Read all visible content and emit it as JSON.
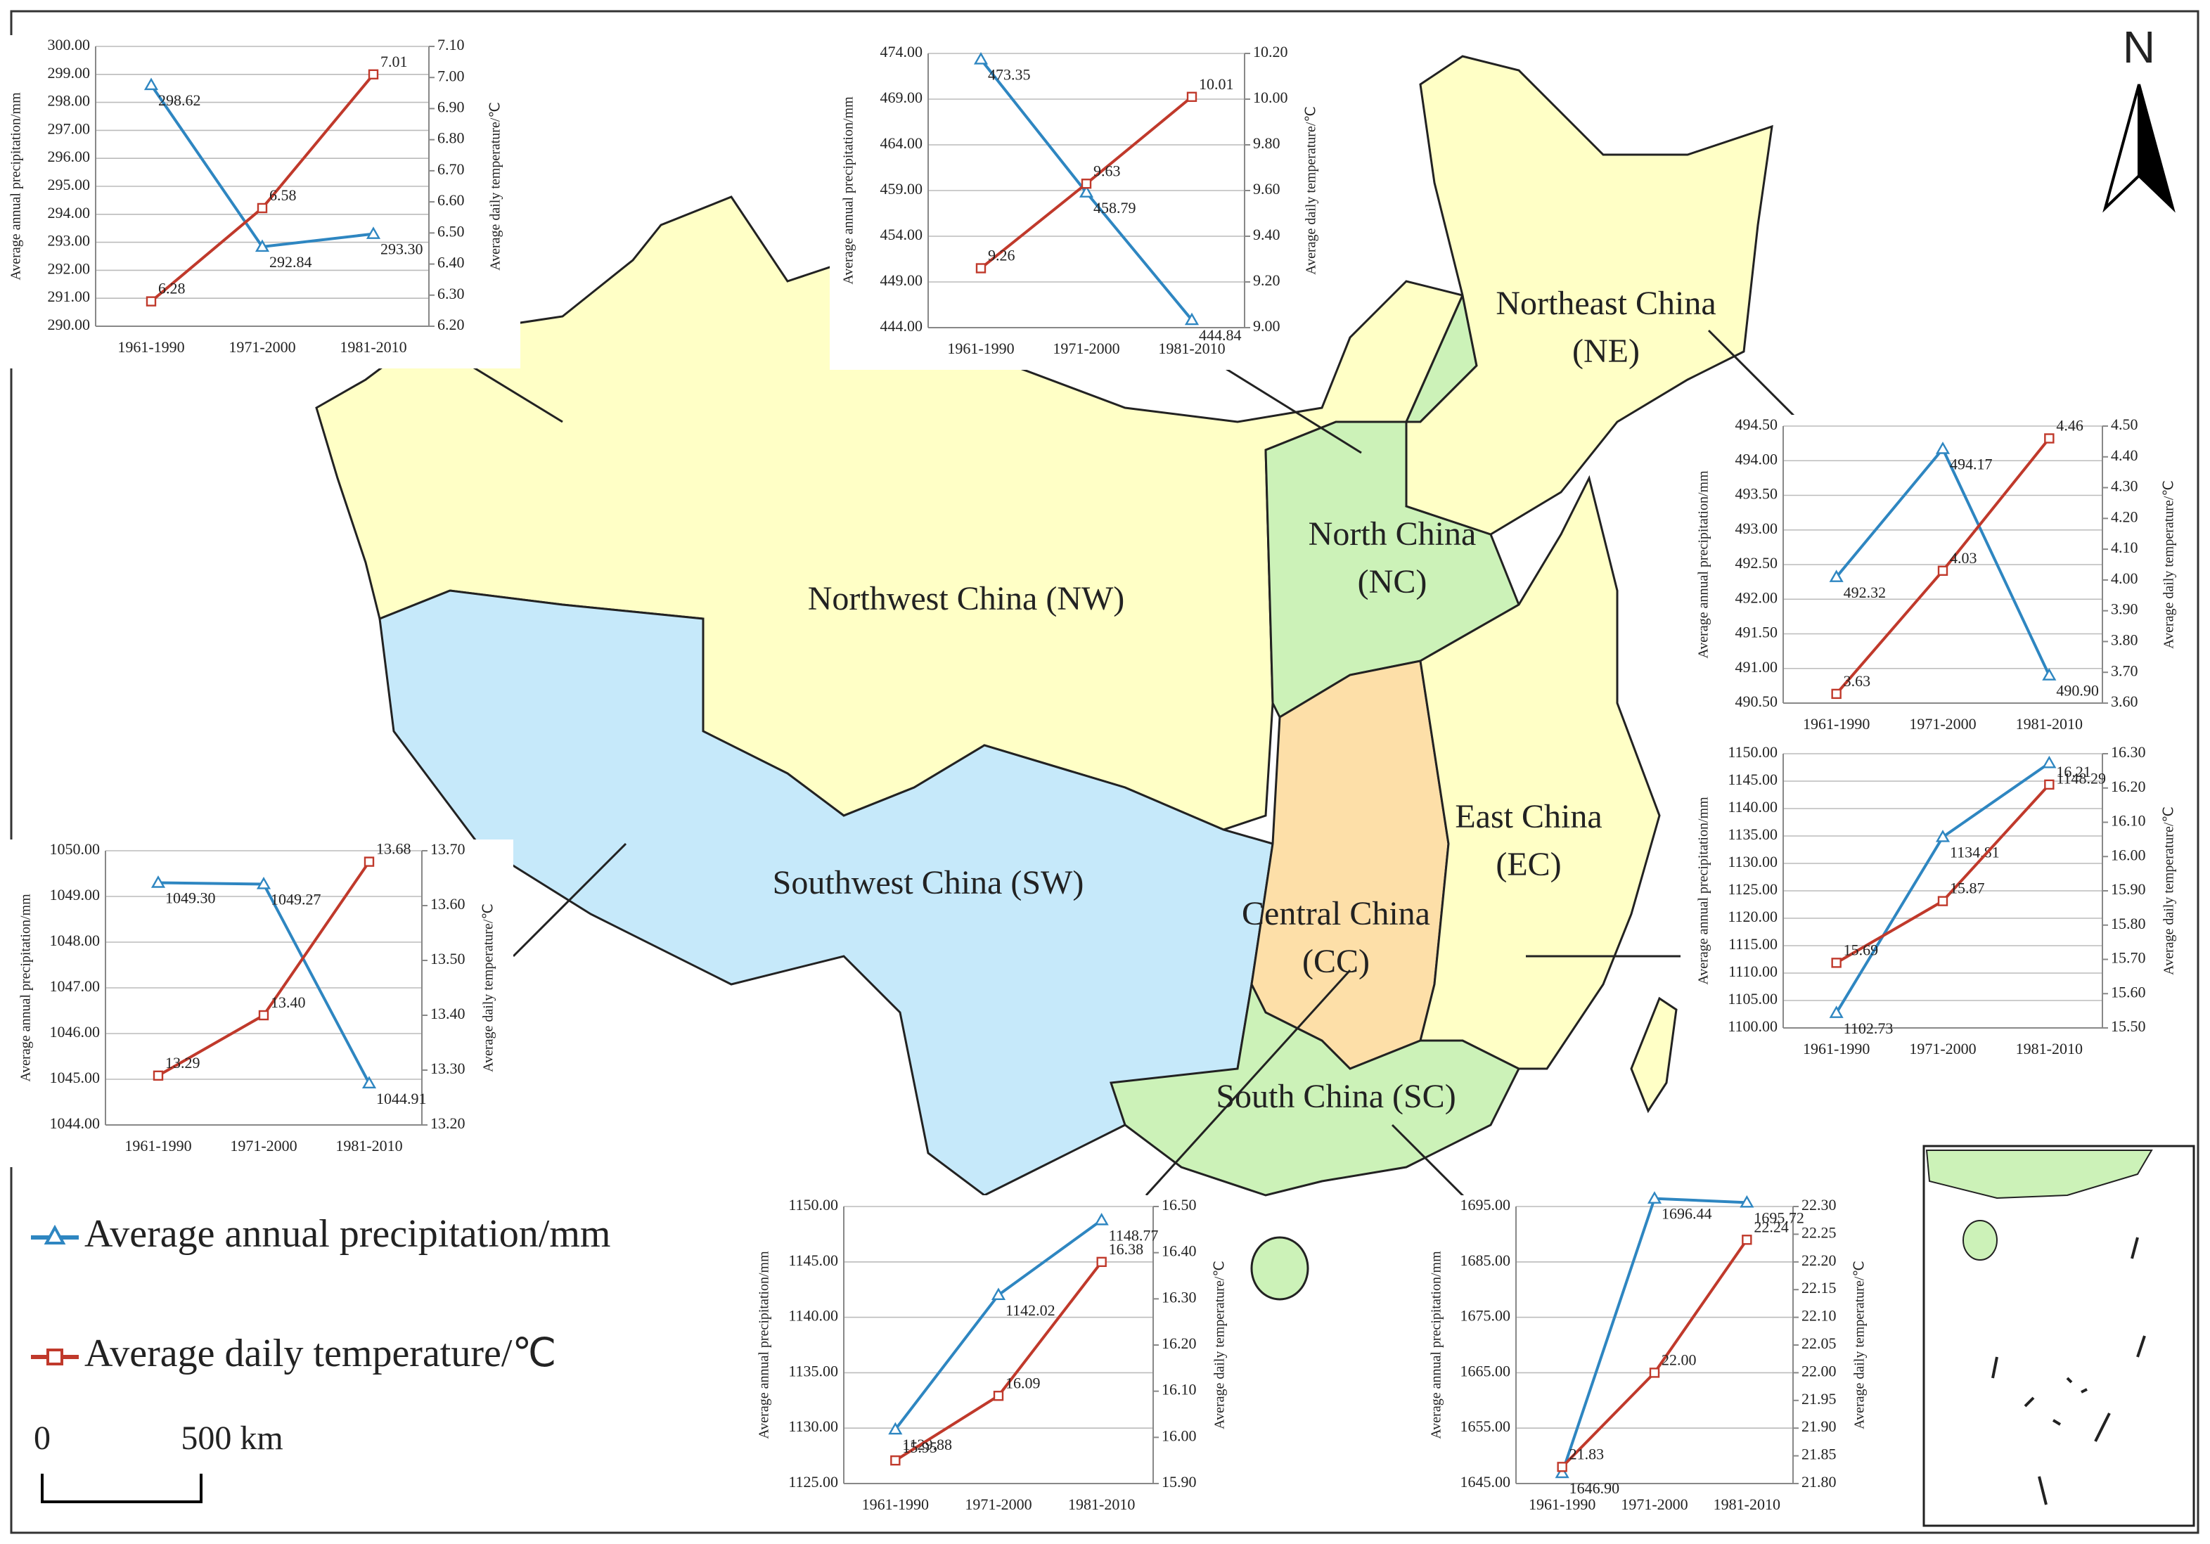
{
  "map": {
    "regions": [
      {
        "labels": [
          "Northwest China (NW)"
        ]
      },
      {
        "labels": [
          "North China",
          "(NC)"
        ]
      },
      {
        "labels": [
          "Northeast China",
          "(NE)"
        ]
      },
      {
        "labels": [
          "East China",
          "(EC)"
        ]
      },
      {
        "labels": [
          "Southwest China (SW)"
        ]
      },
      {
        "labels": [
          "Central China",
          "(CC)"
        ]
      },
      {
        "labels": [
          "South China (SC)"
        ]
      }
    ],
    "north": "N",
    "scale": {
      "start": "0",
      "end": "500 km"
    }
  },
  "legend": [
    {
      "name": "Average annual precipitation/mm",
      "color": "#2E86C1"
    },
    {
      "name": "Average daily temperature/℃",
      "color": "#C0392B"
    }
  ],
  "chart_data": [
    {
      "type": "line",
      "categories": [
        "1961-1990",
        "1971-2000",
        "1981-2010"
      ],
      "ylabel": "Average annual precipitation/mm",
      "y2label": "Average daily temperature/℃",
      "ylim": [
        290,
        300
      ],
      "yticks": [
        {
          "value": 290,
          "label": "290.00"
        },
        {
          "value": 291,
          "label": "291.00"
        },
        {
          "value": 292,
          "label": "292.00"
        },
        {
          "value": 293,
          "label": "293.00"
        },
        {
          "value": 294,
          "label": "294.00"
        },
        {
          "value": 295,
          "label": "295.00"
        },
        {
          "value": 296,
          "label": "296.00"
        },
        {
          "value": 297,
          "label": "297.00"
        },
        {
          "value": 298,
          "label": "298.00"
        },
        {
          "value": 299,
          "label": "299.00"
        },
        {
          "value": 300,
          "label": "300.00"
        }
      ],
      "y2lim": [
        6.2,
        7.1
      ],
      "y2ticks": [
        {
          "value": 6.2,
          "label": "6.20"
        },
        {
          "value": 6.3,
          "label": "6.30"
        },
        {
          "value": 6.4,
          "label": "6.40"
        },
        {
          "value": 6.5,
          "label": "6.50"
        },
        {
          "value": 6.6,
          "label": "6.60"
        },
        {
          "value": 6.7,
          "label": "6.70"
        },
        {
          "value": 6.8,
          "label": "6.80"
        },
        {
          "value": 6.9,
          "label": "6.90"
        },
        {
          "value": 7.0,
          "label": "7.00"
        },
        {
          "value": 7.1,
          "label": "7.10"
        }
      ],
      "series": [
        {
          "values": [
            298.62,
            292.84,
            293.3
          ],
          "value_labels": [
            "298.62",
            "292.84",
            "293.30"
          ]
        },
        {
          "axis": "y2",
          "values": [
            6.28,
            6.58,
            7.01
          ],
          "value_labels": [
            "6.28",
            "6.58",
            "7.01"
          ]
        }
      ]
    },
    {
      "type": "line",
      "categories": [
        "1961-1990",
        "1971-2000",
        "1981-2010"
      ],
      "ylabel": "Average annual precipitation/mm",
      "y2label": "Average daily temperature/℃",
      "ylim": [
        444,
        474
      ],
      "yticks": [
        {
          "value": 444,
          "label": "444.00"
        },
        {
          "value": 449,
          "label": "449.00"
        },
        {
          "value": 454,
          "label": "454.00"
        },
        {
          "value": 459,
          "label": "459.00"
        },
        {
          "value": 464,
          "label": "464.00"
        },
        {
          "value": 469,
          "label": "469.00"
        },
        {
          "value": 474,
          "label": "474.00"
        }
      ],
      "y2lim": [
        9.0,
        10.2
      ],
      "y2ticks": [
        {
          "value": 9.0,
          "label": "9.00"
        },
        {
          "value": 9.2,
          "label": "9.20"
        },
        {
          "value": 9.4,
          "label": "9.40"
        },
        {
          "value": 9.6,
          "label": "9.60"
        },
        {
          "value": 9.8,
          "label": "9.80"
        },
        {
          "value": 10.0,
          "label": "10.00"
        },
        {
          "value": 10.2,
          "label": "10.20"
        }
      ],
      "series": [
        {
          "values": [
            473.35,
            458.79,
            444.84
          ],
          "value_labels": [
            "473.35",
            "458.79",
            "444.84"
          ]
        },
        {
          "axis": "y2",
          "values": [
            9.26,
            9.63,
            10.01
          ],
          "value_labels": [
            "9.26",
            "9.63",
            "10.01"
          ]
        }
      ]
    },
    {
      "type": "line",
      "categories": [
        "1961-1990",
        "1971-2000",
        "1981-2010"
      ],
      "ylabel": "Average annual precipitation/mm",
      "y2label": "Average daily temperature/℃",
      "ylim": [
        490.5,
        494.5
      ],
      "yticks": [
        {
          "value": 490.5,
          "label": "490.50"
        },
        {
          "value": 491,
          "label": "491.00"
        },
        {
          "value": 491.5,
          "label": "491.50"
        },
        {
          "value": 492,
          "label": "492.00"
        },
        {
          "value": 492.5,
          "label": "492.50"
        },
        {
          "value": 493,
          "label": "493.00"
        },
        {
          "value": 493.5,
          "label": "493.50"
        },
        {
          "value": 494,
          "label": "494.00"
        },
        {
          "value": 494.5,
          "label": "494.50"
        }
      ],
      "y2lim": [
        3.6,
        4.5
      ],
      "y2ticks": [
        {
          "value": 3.6,
          "label": "3.60"
        },
        {
          "value": 3.7,
          "label": "3.70"
        },
        {
          "value": 3.8,
          "label": "3.80"
        },
        {
          "value": 3.9,
          "label": "3.90"
        },
        {
          "value": 4.0,
          "label": "4.00"
        },
        {
          "value": 4.1,
          "label": "4.10"
        },
        {
          "value": 4.2,
          "label": "4.20"
        },
        {
          "value": 4.3,
          "label": "4.30"
        },
        {
          "value": 4.4,
          "label": "4.40"
        },
        {
          "value": 4.5,
          "label": "4.50"
        }
      ],
      "series": [
        {
          "values": [
            492.32,
            494.17,
            490.9
          ],
          "value_labels": [
            "492.32",
            "494.17",
            "490.90"
          ]
        },
        {
          "axis": "y2",
          "values": [
            3.63,
            4.03,
            4.46
          ],
          "value_labels": [
            "3.63",
            "4.03",
            "4.46"
          ]
        }
      ]
    },
    {
      "type": "line",
      "categories": [
        "1961-1990",
        "1971-2000",
        "1981-2010"
      ],
      "ylabel": "Average annual precipitation/mm",
      "y2label": "Average daily temperature/℃",
      "ylim": [
        1100,
        1150
      ],
      "yticks": [
        {
          "value": 1100,
          "label": "1100.00"
        },
        {
          "value": 1105,
          "label": "1105.00"
        },
        {
          "value": 1110,
          "label": "1110.00"
        },
        {
          "value": 1115,
          "label": "1115.00"
        },
        {
          "value": 1120,
          "label": "1120.00"
        },
        {
          "value": 1125,
          "label": "1125.00"
        },
        {
          "value": 1130,
          "label": "1130.00"
        },
        {
          "value": 1135,
          "label": "1135.00"
        },
        {
          "value": 1140,
          "label": "1140.00"
        },
        {
          "value": 1145,
          "label": "1145.00"
        },
        {
          "value": 1150,
          "label": "1150.00"
        }
      ],
      "y2lim": [
        15.5,
        16.3
      ],
      "y2ticks": [
        {
          "value": 15.5,
          "label": "15.50"
        },
        {
          "value": 15.6,
          "label": "15.60"
        },
        {
          "value": 15.7,
          "label": "15.70"
        },
        {
          "value": 15.8,
          "label": "15.80"
        },
        {
          "value": 15.9,
          "label": "15.90"
        },
        {
          "value": 16.0,
          "label": "16.00"
        },
        {
          "value": 16.1,
          "label": "16.10"
        },
        {
          "value": 16.2,
          "label": "16.20"
        },
        {
          "value": 16.3,
          "label": "16.30"
        }
      ],
      "series": [
        {
          "values": [
            1102.73,
            1134.81,
            1148.29
          ],
          "value_labels": [
            "1102.73",
            "1134.81",
            "1148.29"
          ]
        },
        {
          "axis": "y2",
          "values": [
            15.69,
            15.87,
            16.21
          ],
          "value_labels": [
            "15.69",
            "15.87",
            "16.21"
          ]
        }
      ]
    },
    {
      "type": "line",
      "categories": [
        "1961-1990",
        "1971-2000",
        "1981-2010"
      ],
      "ylabel": "Average annual precipitation/mm",
      "y2label": "Average daily temperature/℃",
      "ylim": [
        1044,
        1050
      ],
      "yticks": [
        {
          "value": 1044,
          "label": "1044.00"
        },
        {
          "value": 1045,
          "label": "1045.00"
        },
        {
          "value": 1046,
          "label": "1046.00"
        },
        {
          "value": 1047,
          "label": "1047.00"
        },
        {
          "value": 1048,
          "label": "1048.00"
        },
        {
          "value": 1049,
          "label": "1049.00"
        },
        {
          "value": 1050,
          "label": "1050.00"
        }
      ],
      "y2lim": [
        13.2,
        13.7
      ],
      "y2ticks": [
        {
          "value": 13.2,
          "label": "13.20"
        },
        {
          "value": 13.3,
          "label": "13.30"
        },
        {
          "value": 13.4,
          "label": "13.40"
        },
        {
          "value": 13.5,
          "label": "13.50"
        },
        {
          "value": 13.6,
          "label": "13.60"
        },
        {
          "value": 13.7,
          "label": "13.70"
        }
      ],
      "series": [
        {
          "values": [
            1049.3,
            1049.27,
            1044.91
          ],
          "value_labels": [
            "1049.30",
            "1049.27",
            "1044.91"
          ]
        },
        {
          "axis": "y2",
          "values": [
            13.29,
            13.4,
            13.68
          ],
          "value_labels": [
            "13.29",
            "13.40",
            "13.68"
          ]
        }
      ]
    },
    {
      "type": "line",
      "categories": [
        "1961-1990",
        "1971-2000",
        "1981-2010"
      ],
      "ylabel": "Average annual precipitation/mm",
      "y2label": "Average daily temperature/℃",
      "ylim": [
        1125,
        1150
      ],
      "yticks": [
        {
          "value": 1125,
          "label": "1125.00"
        },
        {
          "value": 1130,
          "label": "1130.00"
        },
        {
          "value": 1135,
          "label": "1135.00"
        },
        {
          "value": 1140,
          "label": "1140.00"
        },
        {
          "value": 1145,
          "label": "1145.00"
        },
        {
          "value": 1150,
          "label": "1150.00"
        }
      ],
      "y2lim": [
        15.9,
        16.5
      ],
      "y2ticks": [
        {
          "value": 15.9,
          "label": "15.90"
        },
        {
          "value": 16.0,
          "label": "16.00"
        },
        {
          "value": 16.1,
          "label": "16.10"
        },
        {
          "value": 16.2,
          "label": "16.20"
        },
        {
          "value": 16.3,
          "label": "16.30"
        },
        {
          "value": 16.4,
          "label": "16.40"
        },
        {
          "value": 16.5,
          "label": "16.50"
        }
      ],
      "series": [
        {
          "values": [
            1129.88,
            1142.02,
            1148.77
          ],
          "value_labels": [
            "1129.88",
            "1142.02",
            "1148.77"
          ]
        },
        {
          "axis": "y2",
          "values": [
            15.95,
            16.09,
            16.38
          ],
          "value_labels": [
            "15.95",
            "16.09",
            "16.38"
          ]
        }
      ]
    },
    {
      "type": "line",
      "categories": [
        "1961-1990",
        "1971-2000",
        "1981-2010"
      ],
      "ylabel": "Average annual precipitation/mm",
      "y2label": "Average daily temperature/℃",
      "ylim": [
        1645,
        1695
      ],
      "yticks": [
        {
          "value": 1645,
          "label": "1645.00"
        },
        {
          "value": 1655,
          "label": "1655.00"
        },
        {
          "value": 1665,
          "label": "1665.00"
        },
        {
          "value": 1675,
          "label": "1675.00"
        },
        {
          "value": 1685,
          "label": "1685.00"
        },
        {
          "value": 1695,
          "label": "1695.00"
        }
      ],
      "y2lim": [
        21.8,
        22.3
      ],
      "y2ticks": [
        {
          "value": 21.8,
          "label": "21.80"
        },
        {
          "value": 21.85,
          "label": "21.85"
        },
        {
          "value": 21.9,
          "label": "21.90"
        },
        {
          "value": 21.95,
          "label": "21.95"
        },
        {
          "value": 22.0,
          "label": "22.00"
        },
        {
          "value": 22.05,
          "label": "22.05"
        },
        {
          "value": 22.1,
          "label": "22.10"
        },
        {
          "value": 22.15,
          "label": "22.15"
        },
        {
          "value": 22.2,
          "label": "22.20"
        },
        {
          "value": 22.25,
          "label": "22.25"
        },
        {
          "value": 22.3,
          "label": "22.30"
        }
      ],
      "series": [
        {
          "values": [
            1646.9,
            1696.44,
            1695.72
          ],
          "value_labels": [
            "1646.90",
            "1696.44",
            "1695.72"
          ]
        },
        {
          "axis": "y2",
          "values": [
            21.83,
            22.0,
            22.24
          ],
          "value_labels": [
            "21.83",
            "22.00",
            "22.24"
          ]
        }
      ]
    }
  ]
}
